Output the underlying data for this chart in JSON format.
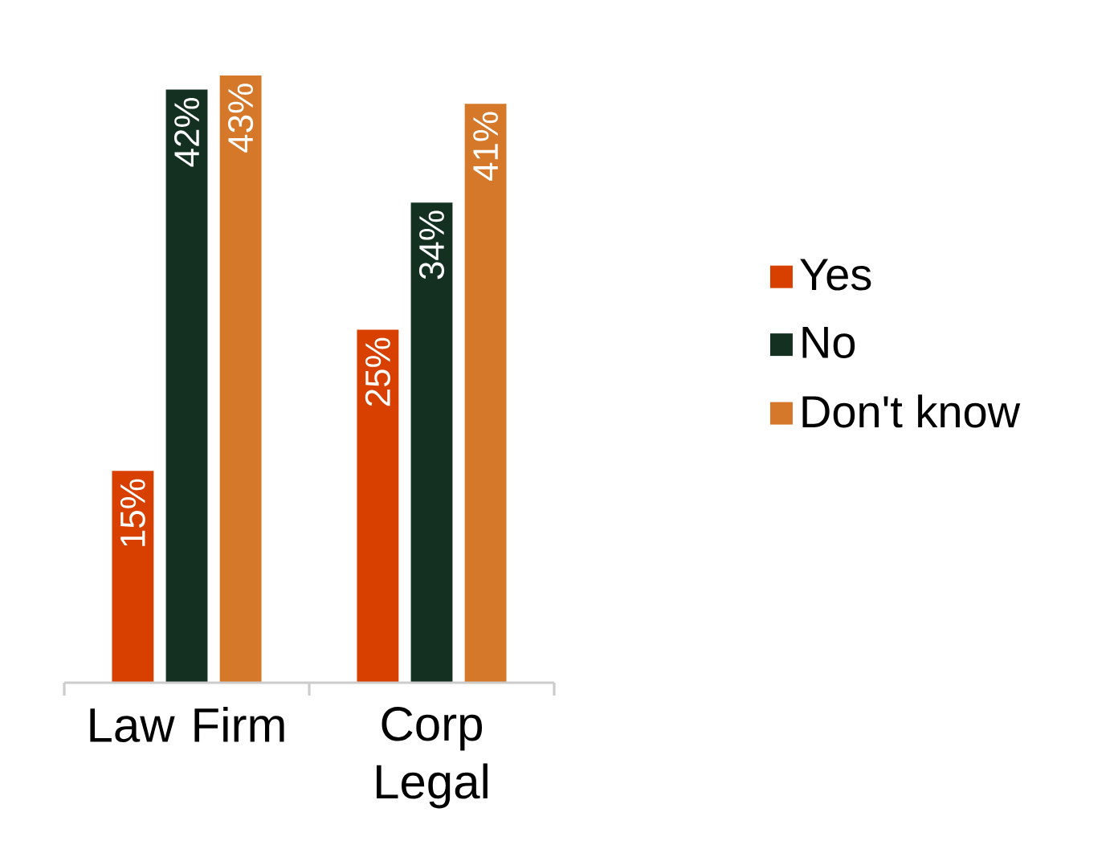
{
  "chart_data": {
    "type": "bar",
    "categories": [
      "Law Firm",
      "Corp Legal"
    ],
    "series": [
      {
        "name": "Yes",
        "color": "#d84000",
        "values": [
          15,
          25
        ],
        "value_labels": [
          "15%",
          "25%"
        ]
      },
      {
        "name": "No",
        "color": "#133021",
        "values": [
          42,
          34
        ],
        "value_labels": [
          "42%",
          "34%"
        ]
      },
      {
        "name": "Don't know",
        "color": "#d5782a",
        "values": [
          43,
          41
        ],
        "value_labels": [
          "43%",
          "41%"
        ]
      }
    ],
    "legend": "right"
  }
}
